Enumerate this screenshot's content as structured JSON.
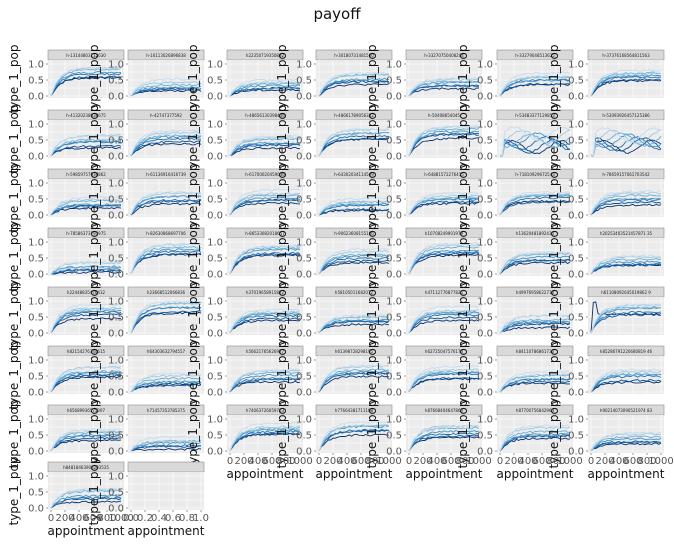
{
  "title": "payoff",
  "chart_data": {
    "type": "line",
    "title": "payoff",
    "xlabel": "appointment",
    "ylabel": "type_1_pop",
    "ylim": [
      0,
      1.0
    ],
    "y_ticks": [
      "0.0",
      "0.5",
      "1.0"
    ],
    "x_ticks": [
      "0",
      "200",
      "400",
      "600",
      "800",
      "1000"
    ],
    "x_ticks_short_axis": [
      "0.0",
      "0.2",
      "0.4",
      "0.6",
      "0.8",
      "1.0"
    ],
    "grid": true,
    "series_colors": [
      "#08306b",
      "#08519c",
      "#2171b5",
      "#4292c6",
      "#6baed6",
      "#9ecae1",
      "#c6dbef"
    ],
    "panels": [
      {
        "label": "h-13144803112630",
        "level": 0.78,
        "variant": "narrow"
      },
      {
        "label": "h-16113026896838",
        "level": 0.35,
        "variant": "narrow"
      },
      {
        "label": "h22350719350882",
        "level": 0.35,
        "variant": "narrow"
      },
      {
        "label": "h-30180731481560",
        "level": 0.6,
        "variant": "narrow"
      },
      {
        "label": "h-33270750408204",
        "level": 0.45,
        "variant": "narrow"
      },
      {
        "label": "h-33279048513625",
        "level": 0.55,
        "variant": "narrow"
      },
      {
        "label": "h-37376168564811563",
        "level": 0.65,
        "variant": "narrow"
      },
      {
        "label": "h-41320238038675",
        "level": 0.5,
        "variant": "narrow"
      },
      {
        "label": "h-42747377592",
        "level": 0.6,
        "variant": "narrow"
      },
      {
        "label": "h-48656130398436",
        "level": 0.45,
        "variant": "narrow"
      },
      {
        "label": "h-48661789056332",
        "level": 0.7,
        "variant": "narrow"
      },
      {
        "label": "h-50408654045",
        "level": 0.8,
        "variant": "narrow"
      },
      {
        "label": "h-53483377129853",
        "level": 0.5,
        "variant": "wave"
      },
      {
        "label": "h-53093926457125386",
        "level": 0.5,
        "variant": "wave"
      },
      {
        "label": "h-59859757936862",
        "level": 0.4,
        "variant": "narrow"
      },
      {
        "label": "h-61136916416739",
        "level": 0.6,
        "variant": "narrow"
      },
      {
        "label": "h-61700020459036",
        "level": 0.6,
        "variant": "narrow"
      },
      {
        "label": "h-64302034114569",
        "level": 0.35,
        "variant": "narrow"
      },
      {
        "label": "h-64881572276415",
        "level": 0.55,
        "variant": "narrow"
      },
      {
        "label": "h-71810929672543",
        "level": 0.6,
        "variant": "narrow"
      },
      {
        "label": "h-78659157061703542",
        "level": 0.55,
        "variant": "narrow"
      },
      {
        "label": "h-78586373797975",
        "level": 0.22,
        "variant": "narrow"
      },
      {
        "label": "h-82630868697706",
        "level": 0.8,
        "variant": "narrow"
      },
      {
        "label": "h-86533082018657",
        "level": 0.75,
        "variant": "narrow"
      },
      {
        "label": "h-90623608155186",
        "level": 0.6,
        "variant": "narrow"
      },
      {
        "label": "h10708249901979",
        "level": 0.8,
        "variant": "narrow"
      },
      {
        "label": "h13620481892430",
        "level": 0.55,
        "variant": "narrow"
      },
      {
        "label": "h20253403521457871 35",
        "level": 0.45,
        "variant": "narrow"
      },
      {
        "label": "h22448835476432",
        "level": 0.7,
        "variant": "narrow"
      },
      {
        "label": "h23668512066836",
        "level": 0.85,
        "variant": "narrow"
      },
      {
        "label": "h37019658915822",
        "level": 0.6,
        "variant": "narrow"
      },
      {
        "label": "h58105011682072",
        "level": 0.45,
        "variant": "narrow"
      },
      {
        "label": "h47112776877825",
        "level": 0.65,
        "variant": "narrow"
      },
      {
        "label": "h49976958622718",
        "level": 0.4,
        "variant": "narrow"
      },
      {
        "label": "h61108092645019862 9",
        "level": 0.75,
        "variant": "spike"
      },
      {
        "label": "h82154276344615",
        "level": 0.65,
        "variant": "narrow"
      },
      {
        "label": "h64303632794557",
        "level": 0.4,
        "variant": "narrow"
      },
      {
        "label": "h56621765626927",
        "level": 0.55,
        "variant": "narrow"
      },
      {
        "label": "h61398728298195",
        "level": 0.7,
        "variant": "narrow"
      },
      {
        "label": "h62725047576174",
        "level": 0.6,
        "variant": "narrow"
      },
      {
        "label": "h84110786861730",
        "level": 0.45,
        "variant": "narrow"
      },
      {
        "label": "h85286791220680819 46",
        "level": 0.55,
        "variant": "narrow"
      },
      {
        "label": "h65689936575397",
        "level": 0.55,
        "variant": "narrow"
      },
      {
        "label": "h71457353785375",
        "level": 0.25,
        "variant": "narrow"
      },
      {
        "label": "h74063726059753",
        "level": 0.7,
        "variant": "narrow"
      },
      {
        "label": "h77664381711168",
        "level": 0.75,
        "variant": "narrow"
      },
      {
        "label": "h87668404647863",
        "level": 0.65,
        "variant": "narrow"
      },
      {
        "label": "h87700756842963",
        "level": 0.6,
        "variant": "narrow"
      },
      {
        "label": "h90214073090521974 83",
        "level": 0.4,
        "variant": "narrow"
      },
      {
        "label": "h84818463908203535",
        "level": 0.45,
        "variant": "narrow"
      },
      {
        "label": "",
        "level": null,
        "variant": "empty"
      }
    ]
  }
}
